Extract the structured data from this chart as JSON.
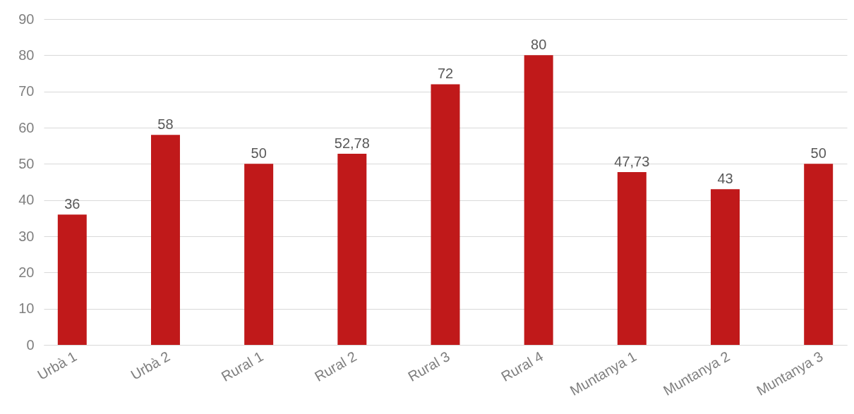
{
  "chart_data": {
    "type": "bar",
    "categories": [
      "Urbà 1",
      "Urbà 2",
      "Rural 1",
      "Rural 2",
      "Rural 3",
      "Rural 4",
      "Muntanya 1",
      "Muntanya 2",
      "Muntanya 3"
    ],
    "values": [
      36,
      58,
      50,
      52.78,
      72,
      80,
      47.73,
      43,
      50
    ],
    "value_labels": [
      "36",
      "58",
      "50",
      "52,78",
      "72",
      "80",
      "47,73",
      "43",
      "50"
    ],
    "color": "#c0191a",
    "ylim": [
      0,
      90
    ],
    "yticks": [
      0,
      10,
      20,
      30,
      40,
      50,
      60,
      70,
      80,
      90
    ],
    "grid": "y"
  }
}
